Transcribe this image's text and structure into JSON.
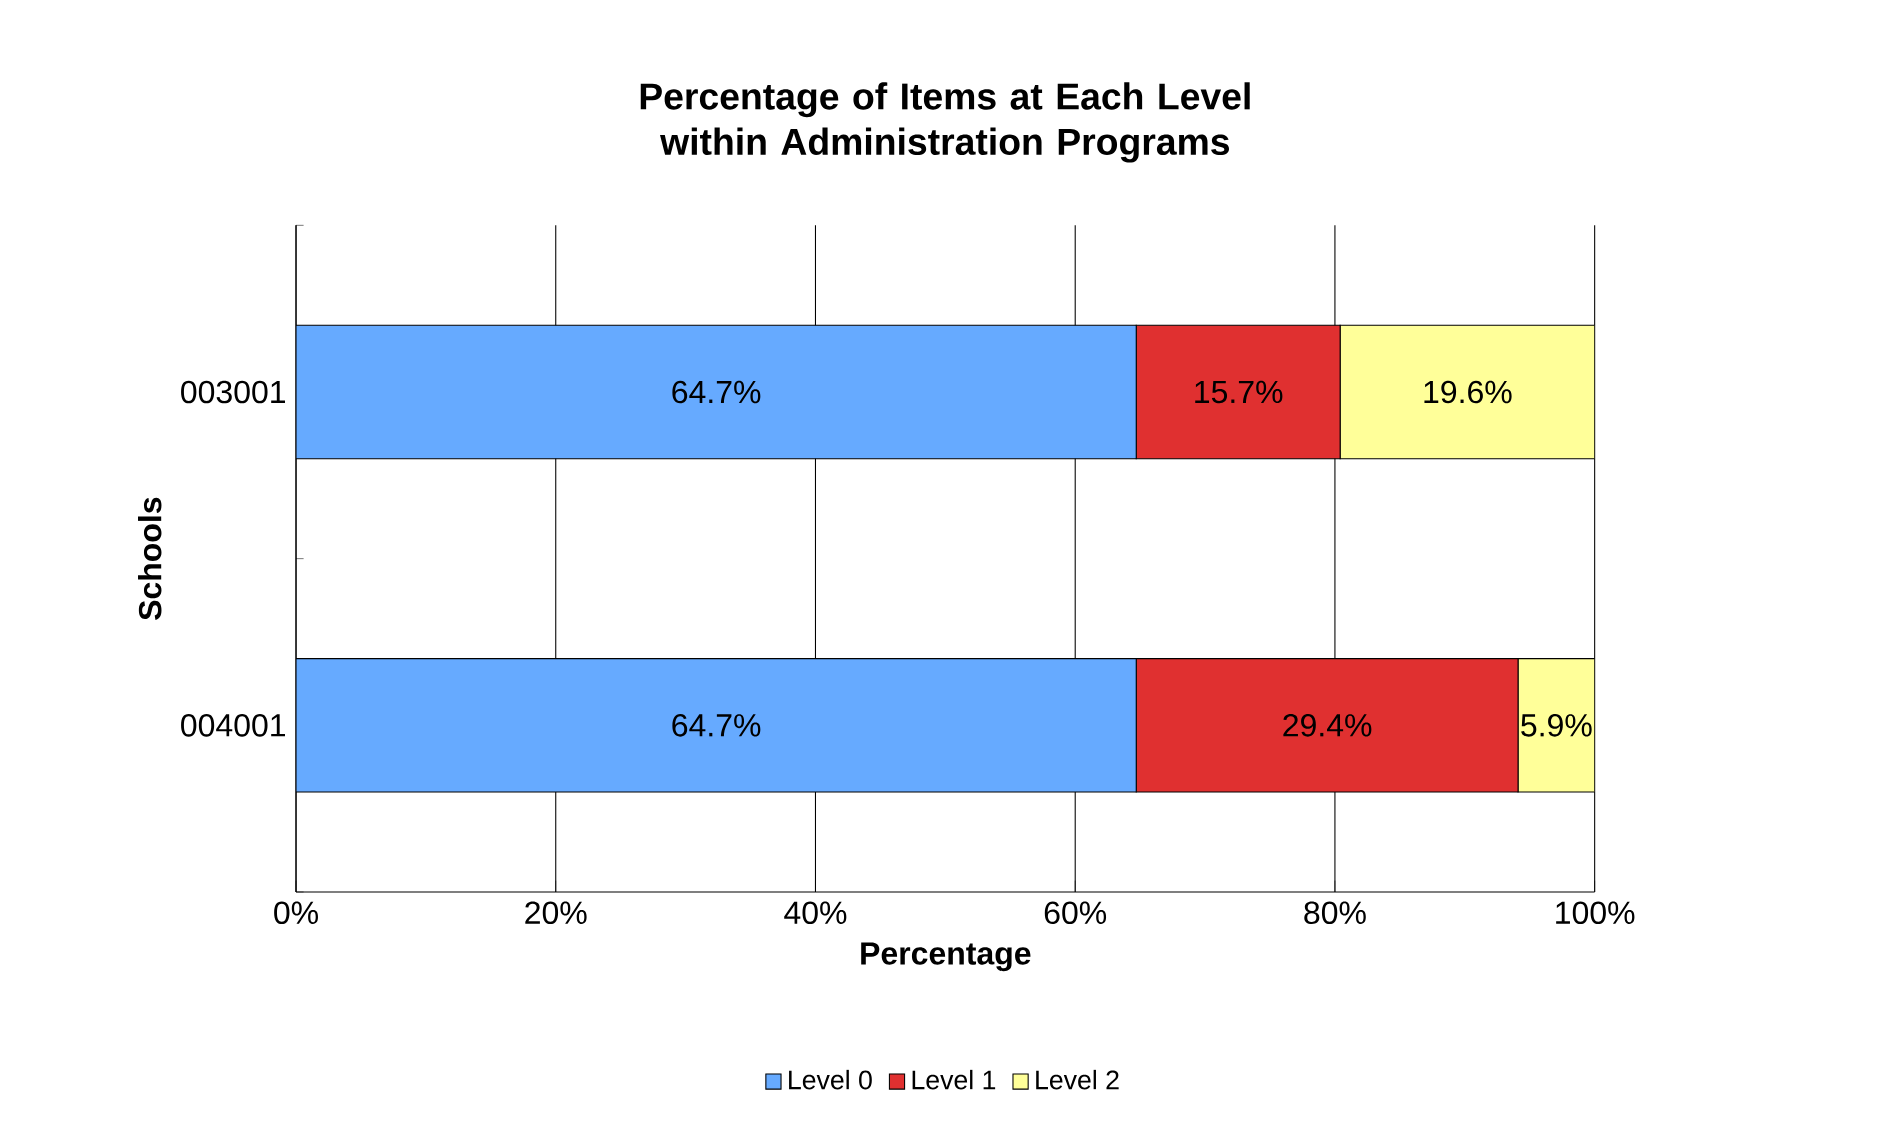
{
  "chart_data": {
    "type": "bar",
    "orientation": "horizontal",
    "stacked": true,
    "title": "Percentage of Items at Each Level within Administration Programs",
    "xlabel": "Percentage",
    "ylabel": "Schools",
    "categories": [
      "003001",
      "004001"
    ],
    "series": [
      {
        "name": "Level 0",
        "color": "#66aaff",
        "values": [
          64.7,
          64.7
        ],
        "value_labels": [
          "64.7%",
          "64.7%"
        ]
      },
      {
        "name": "Level 1",
        "color": "#e03030",
        "values": [
          15.7,
          29.4
        ],
        "value_labels": [
          "15.7%",
          "29.4%"
        ]
      },
      {
        "name": "Level 2",
        "color": "#ffff99",
        "values": [
          19.6,
          5.9
        ],
        "value_labels": [
          "19.6%",
          "5.9%"
        ]
      }
    ],
    "xlim": [
      0,
      100
    ],
    "xticks": [
      {
        "value": 0,
        "label": "0%"
      },
      {
        "value": 20,
        "label": "20%"
      },
      {
        "value": 40,
        "label": "40%"
      },
      {
        "value": 60,
        "label": "60%"
      },
      {
        "value": 80,
        "label": "80%"
      },
      {
        "value": 100,
        "label": "100%"
      }
    ],
    "grid": "x",
    "legend": "bottom"
  }
}
